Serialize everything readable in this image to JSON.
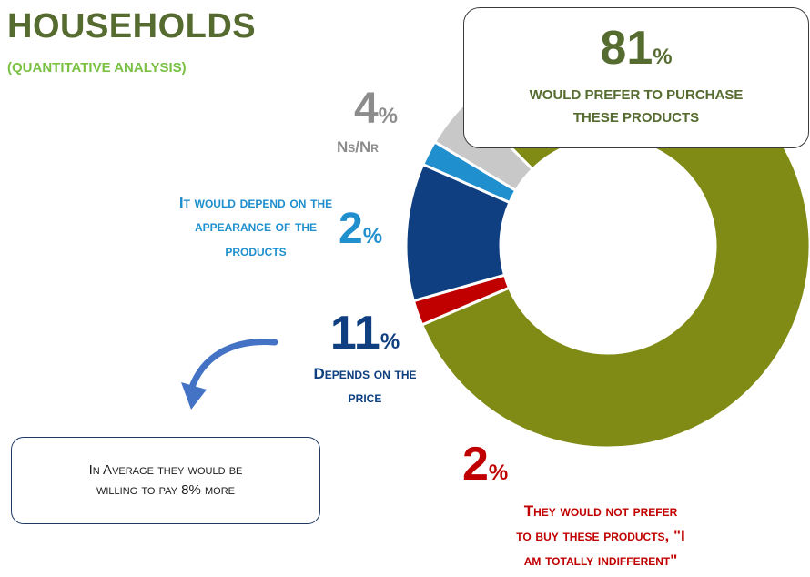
{
  "header": {
    "title": "HOUSEHOLDS",
    "subtitle": "(QUANTITATIVE ANALYSIS)"
  },
  "colors": {
    "prefer": "#7f8b15",
    "depends_price": "#0f3f80",
    "appearance": "#1f8fce",
    "ns_nr": "#c8c8c8",
    "not_prefer": "#c00000",
    "title": "#556b2f",
    "subtitle": "#7ac143"
  },
  "chart_data": {
    "type": "pie",
    "donut": true,
    "slices": [
      {
        "label": "WOULD PREFER TO PURCHASE THESE PRODUCTS",
        "value": 81,
        "color": "#7f8b15"
      },
      {
        "label": "THEY WOULD NOT PREFER TO BUY THESE PRODUCTS, \"I AM TOTALLY INDIFFERENT\"",
        "value": 2,
        "color": "#c00000"
      },
      {
        "label": "DEPENDS ON THE PRICE",
        "value": 11,
        "color": "#0f3f80"
      },
      {
        "label": "IT WOULD DEPEND ON THE APPEARANCE OF THE PRODUCTS",
        "value": 2,
        "color": "#1f8fce"
      },
      {
        "label": "NS/NR",
        "value": 4,
        "color": "#c8c8c8"
      }
    ]
  },
  "labels": {
    "prefer": {
      "value": "81",
      "sign": "%",
      "line1": "WOULD PREFER TO PURCHASE",
      "line2": "THESE PRODUCTS"
    },
    "nsnr": {
      "value": "4",
      "sign": "%",
      "text": "Ns/Nr"
    },
    "appearance": {
      "value": "2",
      "sign": "%",
      "line1": "It would depend on the",
      "line2": "appearance of the",
      "line3": "products"
    },
    "price": {
      "value": "11",
      "sign": "%",
      "line1": "Depends on the",
      "line2": "price"
    },
    "notprefer": {
      "value": "2",
      "sign": "%",
      "line1": "They would not prefer",
      "line2": "to buy these products, \"I",
      "line3": "am totally indifferent\""
    }
  },
  "note": {
    "line1": "In Average they would be",
    "line2": "willing to pay 8% more"
  }
}
